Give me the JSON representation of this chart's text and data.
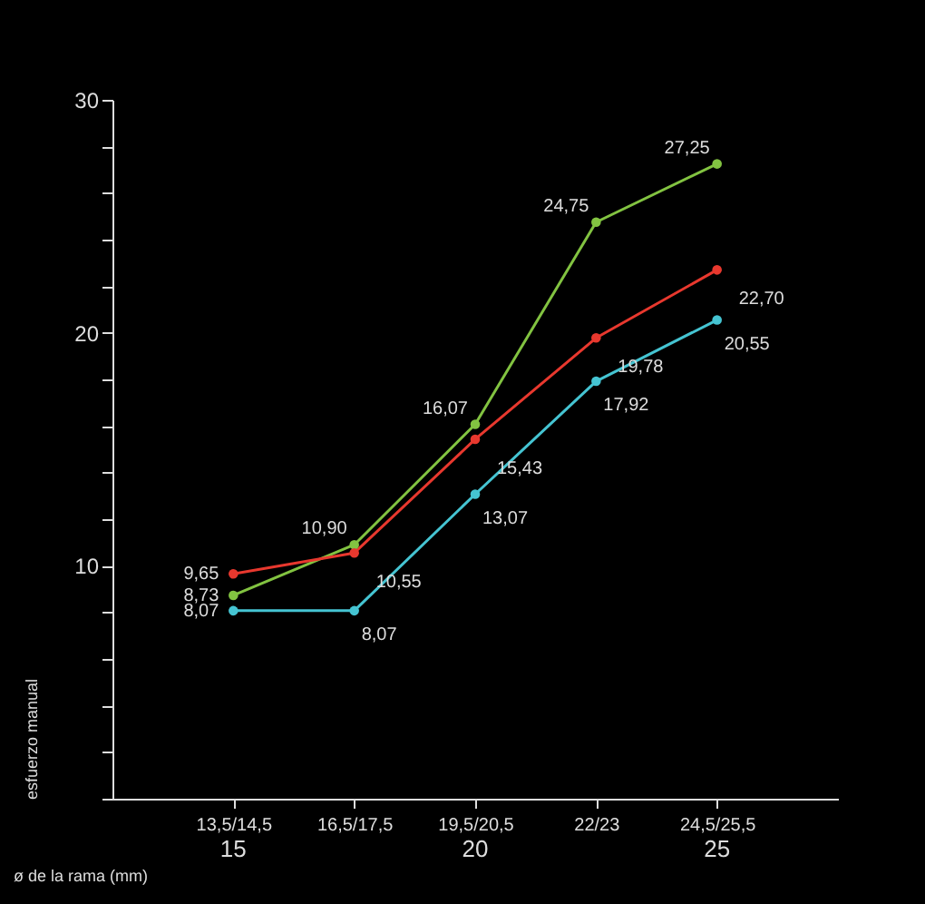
{
  "chart_data": {
    "type": "line",
    "xlabel": "ø de la rama (mm)",
    "ylabel": "esfuerzo manual",
    "categories": [
      "13,5/14,5",
      "16,5/17,5",
      "19,5/20,5",
      "22/23",
      "24,5/25,5"
    ],
    "ylim": [
      0,
      30
    ],
    "yticks": [
      {
        "value": 0,
        "label": null
      },
      {
        "value": 2,
        "label": null
      },
      {
        "value": 4,
        "label": null
      },
      {
        "value": 6,
        "label": null
      },
      {
        "value": 8,
        "label": null
      },
      10,
      {
        "value": 12,
        "label": null
      },
      {
        "value": 14,
        "label": null
      },
      {
        "value": 16,
        "label": null
      },
      {
        "value": 18,
        "label": null
      },
      20,
      {
        "value": 22,
        "label": null
      },
      {
        "value": 24,
        "label": null
      },
      {
        "value": 26,
        "label": null
      },
      {
        "value": 28,
        "label": null
      },
      30
    ],
    "series": [
      {
        "color": "#82c341",
        "values": [
          8.73,
          10.9,
          16.07,
          24.75,
          27.25
        ],
        "value_labels": [
          "8,73",
          "10,90",
          "16,07",
          "24,75",
          "27,25"
        ]
      },
      {
        "color": "#e8382e",
        "values": [
          9.65,
          10.55,
          15.43,
          19.78,
          22.7
        ],
        "value_labels": [
          "9,65",
          "10,55",
          "15,43",
          "19,78",
          "22,70"
        ]
      },
      {
        "color": "#45c4d2",
        "values": [
          8.07,
          8.07,
          13.07,
          17.92,
          20.55
        ],
        "value_labels": [
          "8,07",
          "8,07",
          "13,07",
          "17,92",
          "20,55"
        ]
      }
    ],
    "annotations": [
      "15",
      "20",
      "25"
    ],
    "marker": "circle",
    "line_style": "solid"
  }
}
